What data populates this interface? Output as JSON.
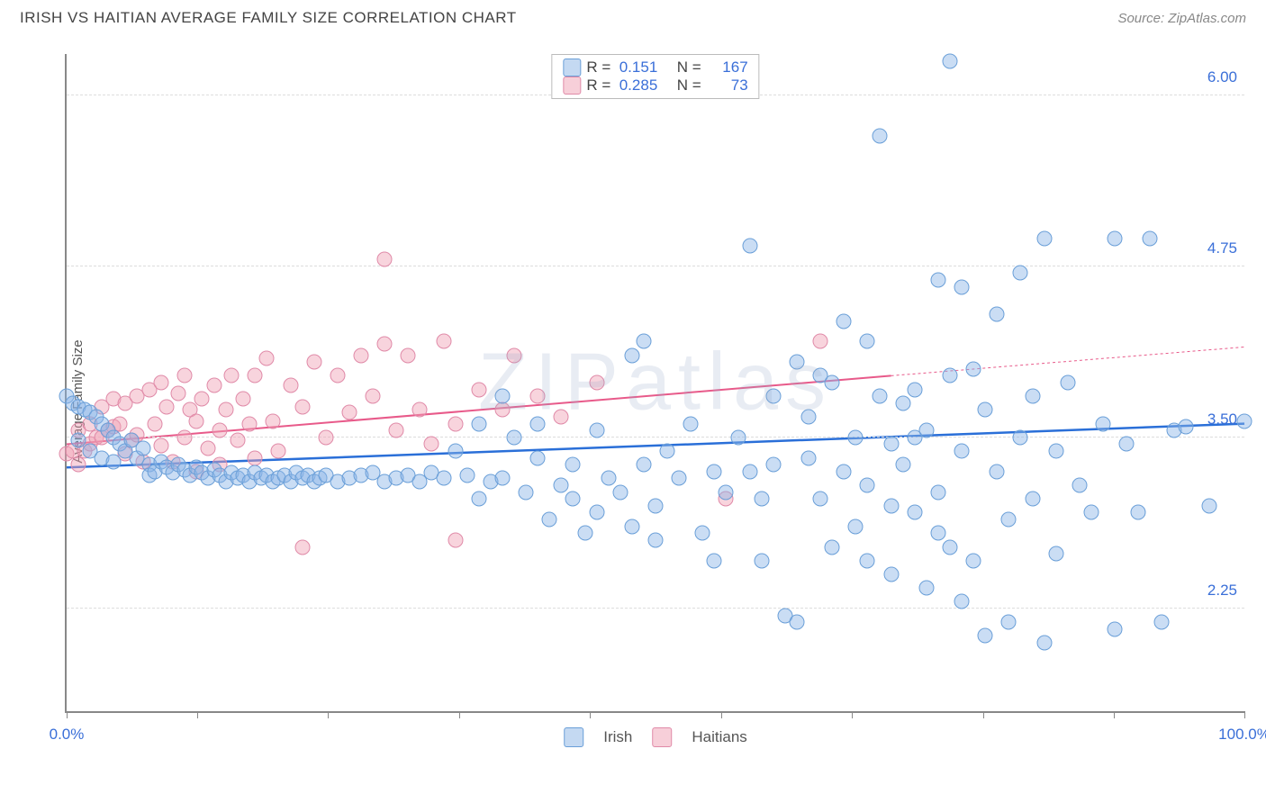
{
  "header": {
    "title": "IRISH VS HAITIAN AVERAGE FAMILY SIZE CORRELATION CHART",
    "source": "Source: ZipAtlas.com"
  },
  "chart": {
    "type": "scatter",
    "y_axis_label": "Average Family Size",
    "watermark": "ZIPatlas",
    "background_color": "#ffffff",
    "grid_color": "#dddddd",
    "border_color": "#888888",
    "xlim": [
      0,
      100
    ],
    "ylim": [
      1.5,
      6.3
    ],
    "y_ticks": [
      {
        "value": 2.25,
        "label": "2.25"
      },
      {
        "value": 3.5,
        "label": "3.50"
      },
      {
        "value": 4.75,
        "label": "4.75"
      },
      {
        "value": 6.0,
        "label": "6.00"
      }
    ],
    "x_tick_values": [
      0,
      11.1,
      22.2,
      33.3,
      44.4,
      55.6,
      66.7,
      77.8,
      88.9,
      100
    ],
    "x_tick_labels": {
      "first": "0.0%",
      "last": "100.0%"
    },
    "y_tick_color": "#3a6fd8",
    "x_tick_color": "#3a6fd8",
    "y_tick_fontsize": 17,
    "label_fontsize": 15,
    "series": {
      "irish": {
        "label": "Irish",
        "marker_fill": "rgba(138,180,230,0.45)",
        "marker_stroke": "#6a9fd8",
        "marker_size": 17,
        "trend_color": "#2a6fd8",
        "trend_width": 2.5,
        "trend": {
          "x1": 0,
          "y1": 3.28,
          "x2": 100,
          "y2": 3.6
        },
        "R": "0.151",
        "N": "167",
        "points": [
          [
            0,
            3.8
          ],
          [
            0.5,
            3.75
          ],
          [
            1,
            3.72
          ],
          [
            1,
            3.48
          ],
          [
            1.5,
            3.7
          ],
          [
            2,
            3.68
          ],
          [
            2,
            3.4
          ],
          [
            2.5,
            3.65
          ],
          [
            3,
            3.6
          ],
          [
            3,
            3.35
          ],
          [
            3.5,
            3.55
          ],
          [
            4,
            3.5
          ],
          [
            4,
            3.32
          ],
          [
            4.5,
            3.45
          ],
          [
            5,
            3.4
          ],
          [
            5.5,
            3.48
          ],
          [
            6,
            3.35
          ],
          [
            6.5,
            3.42
          ],
          [
            7,
            3.3
          ],
          [
            7,
            3.22
          ],
          [
            7.5,
            3.25
          ],
          [
            8,
            3.32
          ],
          [
            8.5,
            3.28
          ],
          [
            9,
            3.24
          ],
          [
            9.5,
            3.3
          ],
          [
            10,
            3.26
          ],
          [
            10.5,
            3.22
          ],
          [
            11,
            3.28
          ],
          [
            11.5,
            3.24
          ],
          [
            12,
            3.2
          ],
          [
            12.5,
            3.26
          ],
          [
            13,
            3.22
          ],
          [
            13.5,
            3.18
          ],
          [
            14,
            3.24
          ],
          [
            14.5,
            3.2
          ],
          [
            15,
            3.22
          ],
          [
            15.5,
            3.18
          ],
          [
            16,
            3.24
          ],
          [
            16.5,
            3.2
          ],
          [
            17,
            3.22
          ],
          [
            17.5,
            3.18
          ],
          [
            18,
            3.2
          ],
          [
            18.5,
            3.22
          ],
          [
            19,
            3.18
          ],
          [
            19.5,
            3.24
          ],
          [
            20,
            3.2
          ],
          [
            20.5,
            3.22
          ],
          [
            21,
            3.18
          ],
          [
            21.5,
            3.2
          ],
          [
            22,
            3.22
          ],
          [
            23,
            3.18
          ],
          [
            24,
            3.2
          ],
          [
            25,
            3.22
          ],
          [
            26,
            3.24
          ],
          [
            27,
            3.18
          ],
          [
            28,
            3.2
          ],
          [
            29,
            3.22
          ],
          [
            30,
            3.18
          ],
          [
            31,
            3.24
          ],
          [
            32,
            3.2
          ],
          [
            33,
            3.4
          ],
          [
            34,
            3.22
          ],
          [
            35,
            3.6
          ],
          [
            36,
            3.18
          ],
          [
            37,
            3.2
          ],
          [
            38,
            3.5
          ],
          [
            39,
            3.1
          ],
          [
            40,
            3.35
          ],
          [
            41,
            2.9
          ],
          [
            42,
            3.15
          ],
          [
            43,
            3.3
          ],
          [
            43,
            3.05
          ],
          [
            44,
            2.8
          ],
          [
            45,
            3.55
          ],
          [
            46,
            3.2
          ],
          [
            47,
            3.1
          ],
          [
            48,
            4.1
          ],
          [
            49,
            3.3
          ],
          [
            50,
            3.0
          ],
          [
            51,
            3.4
          ],
          [
            52,
            3.2
          ],
          [
            53,
            3.6
          ],
          [
            54,
            2.8
          ],
          [
            55,
            3.25
          ],
          [
            56,
            3.1
          ],
          [
            57,
            3.5
          ],
          [
            58,
            4.9
          ],
          [
            59,
            2.6
          ],
          [
            60,
            3.3
          ],
          [
            60,
            3.8
          ],
          [
            61,
            2.2
          ],
          [
            62,
            4.05
          ],
          [
            63,
            3.65
          ],
          [
            63,
            3.35
          ],
          [
            64,
            3.05
          ],
          [
            65,
            3.9
          ],
          [
            65,
            2.7
          ],
          [
            66,
            3.25
          ],
          [
            67,
            3.5
          ],
          [
            67,
            2.85
          ],
          [
            68,
            4.2
          ],
          [
            68,
            3.15
          ],
          [
            69,
            5.7
          ],
          [
            70,
            3.0
          ],
          [
            70,
            2.5
          ],
          [
            71,
            3.75
          ],
          [
            71,
            3.3
          ],
          [
            72,
            3.85
          ],
          [
            72,
            2.95
          ],
          [
            73,
            2.4
          ],
          [
            73,
            3.55
          ],
          [
            74,
            4.65
          ],
          [
            74,
            3.1
          ],
          [
            75,
            2.7
          ],
          [
            75,
            6.25
          ],
          [
            76,
            3.4
          ],
          [
            76,
            2.3
          ],
          [
            77,
            4.0
          ],
          [
            77,
            2.6
          ],
          [
            78,
            2.05
          ],
          [
            78,
            3.7
          ],
          [
            79,
            3.25
          ],
          [
            79,
            4.4
          ],
          [
            80,
            2.9
          ],
          [
            80,
            2.15
          ],
          [
            81,
            4.7
          ],
          [
            81,
            3.5
          ],
          [
            82,
            3.8
          ],
          [
            82,
            3.05
          ],
          [
            83,
            2.0
          ],
          [
            83,
            4.95
          ],
          [
            84,
            3.4
          ],
          [
            84,
            2.65
          ],
          [
            85,
            3.9
          ],
          [
            86,
            3.15
          ],
          [
            87,
            2.95
          ],
          [
            88,
            3.6
          ],
          [
            89,
            2.1
          ],
          [
            89,
            4.95
          ],
          [
            90,
            3.45
          ],
          [
            91,
            2.95
          ],
          [
            92,
            4.95
          ],
          [
            93,
            2.15
          ],
          [
            94,
            3.55
          ],
          [
            95,
            3.58
          ],
          [
            97,
            3.0
          ],
          [
            100,
            3.62
          ],
          [
            62,
            2.15
          ],
          [
            55,
            2.6
          ],
          [
            50,
            2.75
          ],
          [
            49,
            4.2
          ],
          [
            45,
            2.95
          ],
          [
            40,
            3.6
          ],
          [
            37,
            3.8
          ],
          [
            35,
            3.05
          ],
          [
            48,
            2.85
          ],
          [
            58,
            3.25
          ],
          [
            59,
            3.05
          ],
          [
            64,
            3.95
          ],
          [
            66,
            4.35
          ],
          [
            68,
            2.6
          ],
          [
            69,
            3.8
          ],
          [
            70,
            3.45
          ],
          [
            72,
            3.5
          ],
          [
            74,
            2.8
          ],
          [
            75,
            3.95
          ],
          [
            76,
            4.6
          ]
        ]
      },
      "haitian": {
        "label": "Haitians",
        "marker_fill": "rgba(240,160,180,0.45)",
        "marker_stroke": "#e08aa8",
        "marker_size": 17,
        "trend_color": "#e85a8a",
        "trend_width": 2,
        "trend": {
          "x1": 0,
          "y1": 3.45,
          "x2": 70,
          "y2": 3.95
        },
        "trend_extrapolate": {
          "x1": 70,
          "y1": 3.95,
          "x2": 100,
          "y2": 4.16
        },
        "R": "0.285",
        "N": "73",
        "points": [
          [
            0,
            3.38
          ],
          [
            0.5,
            3.4
          ],
          [
            1,
            3.3
          ],
          [
            1,
            3.55
          ],
          [
            1.5,
            3.4
          ],
          [
            2,
            3.45
          ],
          [
            2,
            3.6
          ],
          [
            2.5,
            3.5
          ],
          [
            3,
            3.5
          ],
          [
            3,
            3.72
          ],
          [
            3.5,
            3.55
          ],
          [
            4,
            3.58
          ],
          [
            4,
            3.78
          ],
          [
            4.5,
            3.6
          ],
          [
            5,
            3.38
          ],
          [
            5,
            3.75
          ],
          [
            5.5,
            3.48
          ],
          [
            6,
            3.8
          ],
          [
            6,
            3.52
          ],
          [
            6.5,
            3.32
          ],
          [
            7,
            3.85
          ],
          [
            7.5,
            3.6
          ],
          [
            8,
            3.9
          ],
          [
            8,
            3.44
          ],
          [
            8.5,
            3.72
          ],
          [
            9,
            3.32
          ],
          [
            9.5,
            3.82
          ],
          [
            10,
            3.95
          ],
          [
            10,
            3.5
          ],
          [
            10.5,
            3.7
          ],
          [
            11,
            3.62
          ],
          [
            11,
            3.25
          ],
          [
            11.5,
            3.78
          ],
          [
            12,
            3.42
          ],
          [
            12.5,
            3.88
          ],
          [
            13,
            3.55
          ],
          [
            13,
            3.3
          ],
          [
            13.5,
            3.7
          ],
          [
            14,
            3.95
          ],
          [
            14.5,
            3.48
          ],
          [
            15,
            3.78
          ],
          [
            15.5,
            3.6
          ],
          [
            16,
            3.95
          ],
          [
            16,
            3.35
          ],
          [
            17,
            4.08
          ],
          [
            17.5,
            3.62
          ],
          [
            18,
            3.4
          ],
          [
            19,
            3.88
          ],
          [
            20,
            3.72
          ],
          [
            21,
            4.05
          ],
          [
            22,
            3.5
          ],
          [
            23,
            3.95
          ],
          [
            24,
            3.68
          ],
          [
            25,
            4.1
          ],
          [
            26,
            3.8
          ],
          [
            27,
            4.18
          ],
          [
            27,
            4.8
          ],
          [
            28,
            3.55
          ],
          [
            29,
            4.1
          ],
          [
            30,
            3.7
          ],
          [
            31,
            3.45
          ],
          [
            32,
            4.2
          ],
          [
            33,
            3.6
          ],
          [
            33,
            2.75
          ],
          [
            35,
            3.85
          ],
          [
            37,
            3.7
          ],
          [
            38,
            4.1
          ],
          [
            40,
            3.8
          ],
          [
            42,
            3.65
          ],
          [
            45,
            3.9
          ],
          [
            56,
            3.05
          ],
          [
            64,
            4.2
          ],
          [
            20,
            2.7
          ]
        ]
      }
    },
    "legend_stats": {
      "r_label": "R =",
      "n_label": "N ="
    }
  }
}
